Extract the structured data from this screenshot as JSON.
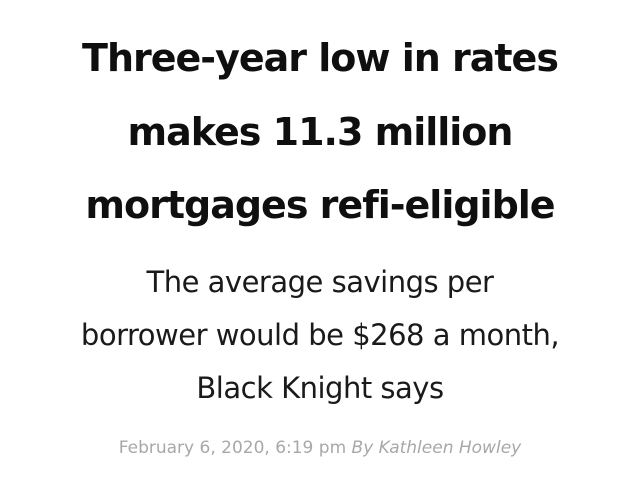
{
  "article": {
    "headline_lines": [
      "Three-year low in rates",
      "makes 11.3 million",
      "mortgages refi-eligible"
    ],
    "subhead_lines": [
      "The average savings per",
      "borrower would be $268 a month,",
      "Black Knight says"
    ],
    "dateline": "February 6, 2020, 6:19 pm",
    "author": "By Kathleen Howley"
  },
  "colors": {
    "headline": "#0f0f0f",
    "subhead": "#1a1a1a",
    "byline": "#a8a8a8",
    "background": "#ffffff"
  }
}
